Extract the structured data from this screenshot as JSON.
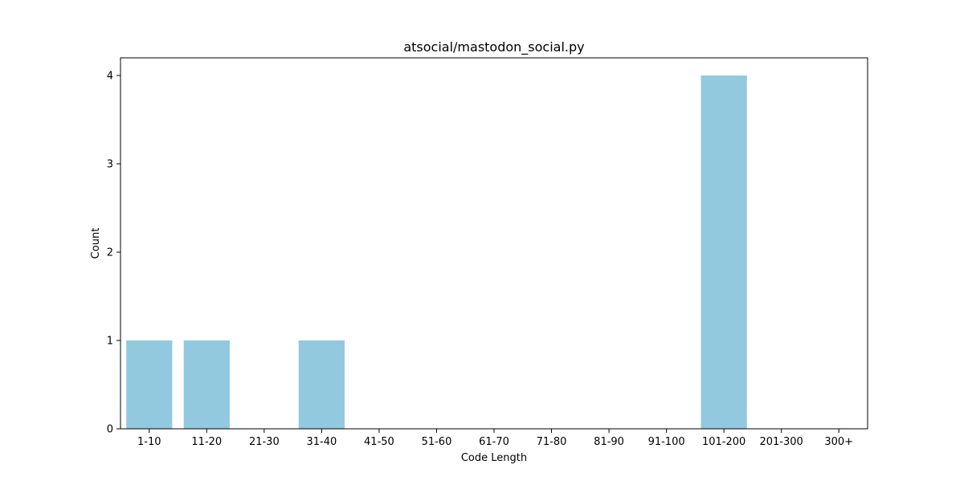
{
  "chart_data": {
    "type": "bar",
    "title": "atsocial/mastodon_social.py",
    "xlabel": "Code Length",
    "ylabel": "Count",
    "categories": [
      "1-10",
      "11-20",
      "21-30",
      "31-40",
      "41-50",
      "51-60",
      "61-70",
      "71-80",
      "81-90",
      "91-100",
      "101-200",
      "201-300",
      "300+"
    ],
    "values": [
      1,
      1,
      0,
      1,
      0,
      0,
      0,
      0,
      0,
      0,
      4,
      0,
      0
    ],
    "ylim": [
      0,
      4.2
    ],
    "yticks": [
      0,
      1,
      2,
      3,
      4
    ],
    "bar_color": "#92c9df",
    "grid": false,
    "legend": "none"
  }
}
